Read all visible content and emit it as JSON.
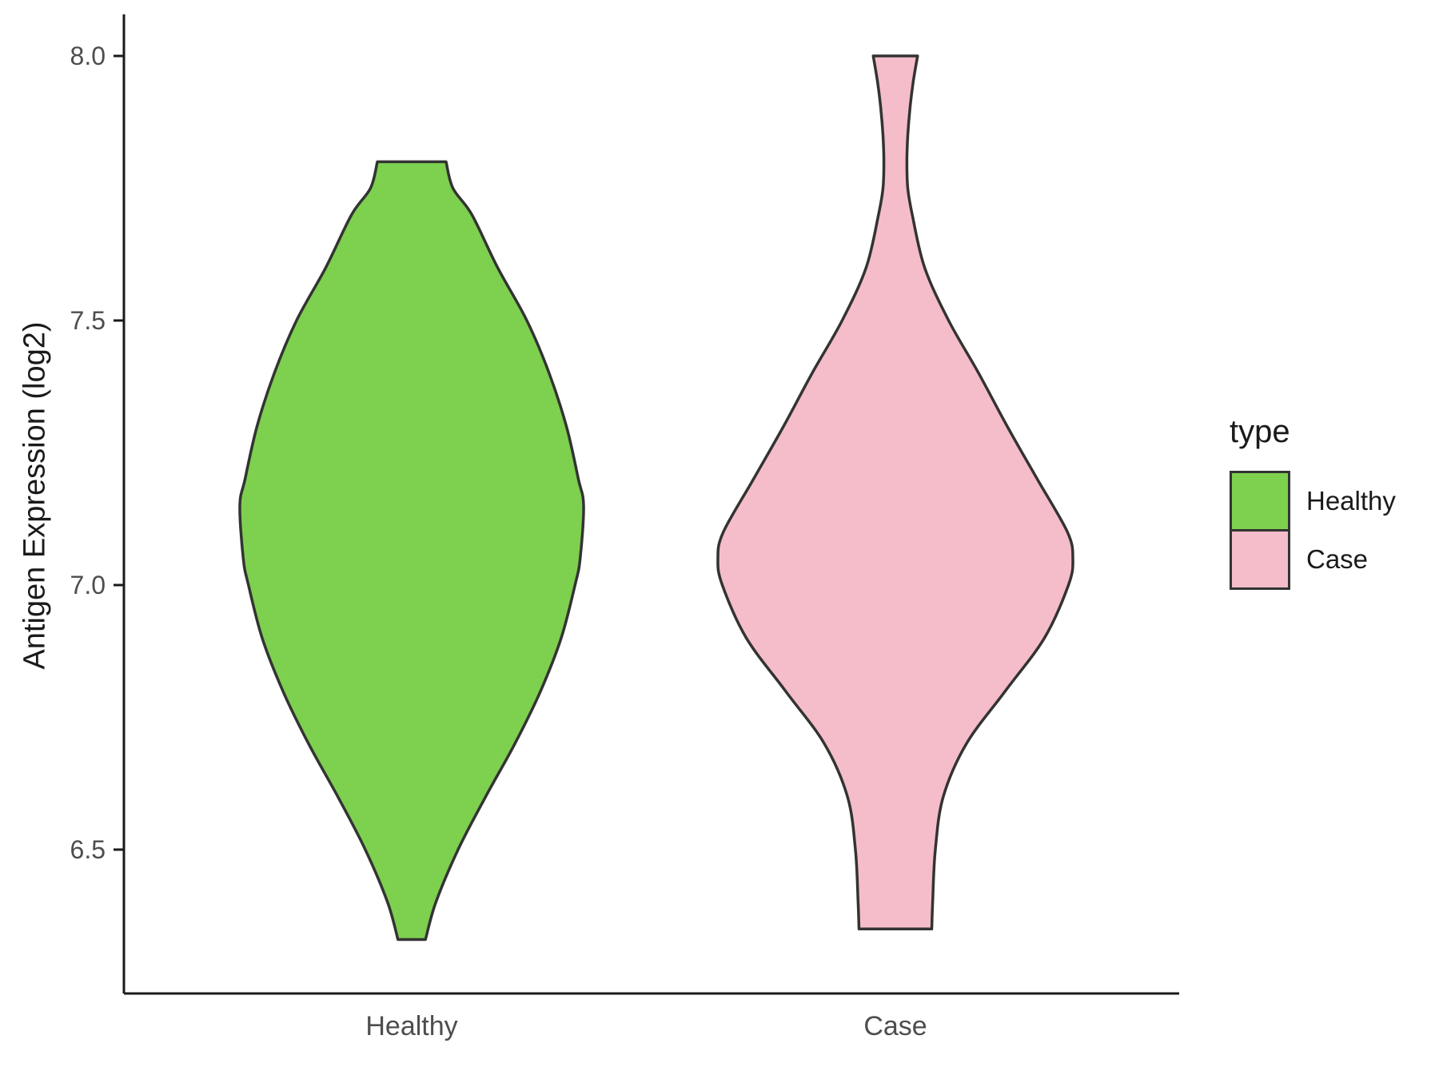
{
  "figure": {
    "background": "#ffffff",
    "axis_color": "#1a1a1a",
    "tick_label_color": "#4d4d4d"
  },
  "legend": {
    "title": "type",
    "items": [
      {
        "label": "Healthy",
        "color": "#7ed04f"
      },
      {
        "label": "Case",
        "color": "#f5bdc9"
      }
    ]
  },
  "chart_data": {
    "type": "violin",
    "title": "",
    "xlabel": "",
    "ylabel": "Antigen Expression (log2)",
    "ylim": [
      6.2,
      8.05
    ],
    "y_ticks": [
      6.5,
      7.0,
      7.5,
      8.0
    ],
    "y_tick_labels": [
      "6.5",
      "7.0",
      "7.5",
      "8.0"
    ],
    "categories": [
      "Healthy",
      "Case"
    ],
    "legend_title": "type",
    "legend_position": "right",
    "grid": false,
    "series": [
      {
        "name": "Healthy",
        "fill": "#7ed04f",
        "outline": "#333333",
        "y_min": 6.33,
        "y_max": 7.8,
        "widest_at": 7.15,
        "profile": [
          {
            "y": 7.8,
            "w": 0.2
          },
          {
            "y": 7.75,
            "w": 0.24
          },
          {
            "y": 7.7,
            "w": 0.35
          },
          {
            "y": 7.6,
            "w": 0.5
          },
          {
            "y": 7.5,
            "w": 0.67
          },
          {
            "y": 7.4,
            "w": 0.8
          },
          {
            "y": 7.3,
            "w": 0.9
          },
          {
            "y": 7.2,
            "w": 0.97
          },
          {
            "y": 7.15,
            "w": 1.0
          },
          {
            "y": 7.05,
            "w": 0.98
          },
          {
            "y": 7.0,
            "w": 0.95
          },
          {
            "y": 6.9,
            "w": 0.87
          },
          {
            "y": 6.8,
            "w": 0.75
          },
          {
            "y": 6.7,
            "w": 0.6
          },
          {
            "y": 6.6,
            "w": 0.43
          },
          {
            "y": 6.5,
            "w": 0.27
          },
          {
            "y": 6.4,
            "w": 0.14
          },
          {
            "y": 6.33,
            "w": 0.08
          }
        ]
      },
      {
        "name": "Case",
        "fill": "#f5bdc9",
        "outline": "#333333",
        "y_min": 6.35,
        "y_max": 8.0,
        "widest_at": 7.05,
        "profile": [
          {
            "y": 8.0,
            "w": 0.125
          },
          {
            "y": 7.95,
            "w": 0.1
          },
          {
            "y": 7.9,
            "w": 0.082
          },
          {
            "y": 7.85,
            "w": 0.07
          },
          {
            "y": 7.8,
            "w": 0.065
          },
          {
            "y": 7.75,
            "w": 0.07
          },
          {
            "y": 7.7,
            "w": 0.095
          },
          {
            "y": 7.6,
            "w": 0.165
          },
          {
            "y": 7.5,
            "w": 0.3
          },
          {
            "y": 7.4,
            "w": 0.47
          },
          {
            "y": 7.3,
            "w": 0.63
          },
          {
            "y": 7.2,
            "w": 0.8
          },
          {
            "y": 7.1,
            "w": 0.97
          },
          {
            "y": 7.05,
            "w": 1.0
          },
          {
            "y": 7.0,
            "w": 0.975
          },
          {
            "y": 6.9,
            "w": 0.84
          },
          {
            "y": 6.8,
            "w": 0.62
          },
          {
            "y": 6.7,
            "w": 0.4
          },
          {
            "y": 6.6,
            "w": 0.27
          },
          {
            "y": 6.5,
            "w": 0.225
          },
          {
            "y": 6.4,
            "w": 0.21
          },
          {
            "y": 6.35,
            "w": 0.205
          }
        ]
      }
    ]
  }
}
